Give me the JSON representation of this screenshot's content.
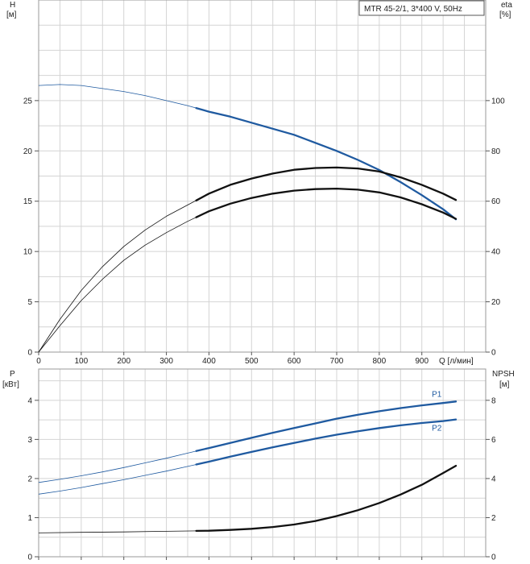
{
  "chart_data": [
    {
      "type": "line",
      "legend_box": "MTR 45-2/1, 3*400 V, 50Hz",
      "xlabel": "Q [л/мин]",
      "x_ticks": [
        0,
        100,
        200,
        300,
        400,
        500,
        600,
        700,
        800,
        900
      ],
      "xlim": [
        0,
        1050
      ],
      "left_axis": {
        "title": "H",
        "unit": "[м]",
        "range": [
          0,
          35
        ],
        "ticks": [
          0,
          5,
          10,
          15,
          20,
          25
        ]
      },
      "right_axis": {
        "title": "eta",
        "unit": "[%]",
        "range": [
          0,
          140
        ],
        "ticks": [
          0,
          20,
          40,
          60,
          80,
          100
        ]
      },
      "grid": true,
      "series": [
        {
          "key": "h",
          "axis": "left",
          "color": "#1f5aa0",
          "operating_range": [
            370,
            980
          ],
          "x": [
            0,
            50,
            100,
            150,
            200,
            250,
            300,
            350,
            400,
            450,
            500,
            550,
            600,
            650,
            700,
            750,
            800,
            850,
            900,
            950,
            980
          ],
          "y": [
            26.5,
            26.6,
            26.5,
            26.2,
            25.9,
            25.5,
            25.0,
            24.5,
            23.9,
            23.4,
            22.8,
            22.2,
            21.6,
            20.8,
            20.0,
            19.1,
            18.1,
            16.9,
            15.6,
            14.2,
            13.2
          ]
        },
        {
          "key": "eta_upper",
          "axis": "right",
          "color": "#111111",
          "operating_range": [
            370,
            980
          ],
          "x": [
            0,
            50,
            100,
            150,
            200,
            250,
            300,
            350,
            400,
            450,
            500,
            550,
            600,
            650,
            700,
            750,
            800,
            850,
            900,
            950,
            980
          ],
          "y": [
            0,
            13,
            24.5,
            34,
            42,
            48.5,
            54,
            58.5,
            63,
            66.5,
            69,
            71,
            72.5,
            73.2,
            73.4,
            73,
            71.8,
            69.5,
            66.5,
            63,
            60.5
          ]
        },
        {
          "key": "eta_lower",
          "axis": "right",
          "color": "#111111",
          "operating_range": [
            370,
            980
          ],
          "x": [
            0,
            50,
            100,
            150,
            200,
            250,
            300,
            350,
            400,
            450,
            500,
            550,
            600,
            650,
            700,
            750,
            800,
            850,
            900,
            950,
            980
          ],
          "y": [
            0,
            10.5,
            20.5,
            29,
            36.5,
            42.5,
            47.5,
            52,
            56,
            59,
            61.3,
            63,
            64.2,
            64.8,
            65,
            64.6,
            63.5,
            61.5,
            58.8,
            55.5,
            53
          ]
        }
      ]
    },
    {
      "type": "line",
      "xlim": [
        0,
        1050
      ],
      "left_axis": {
        "title": "P",
        "unit": "[кВт]",
        "range": [
          0,
          4.8
        ],
        "ticks": [
          0,
          1,
          2,
          3,
          4
        ]
      },
      "right_axis": {
        "title": "NPSH",
        "unit": "[м]",
        "range": [
          0,
          9.6
        ],
        "ticks": [
          0,
          2,
          4,
          6,
          8
        ]
      },
      "grid": true,
      "series": [
        {
          "key": "p1",
          "name": "P1",
          "axis": "left",
          "color": "#1f5aa0",
          "operating_range": [
            370,
            980
          ],
          "x": [
            0,
            50,
            100,
            150,
            200,
            250,
            300,
            350,
            400,
            450,
            500,
            550,
            600,
            650,
            700,
            750,
            800,
            850,
            900,
            950,
            980
          ],
          "y": [
            1.9,
            1.98,
            2.07,
            2.17,
            2.28,
            2.4,
            2.52,
            2.65,
            2.78,
            2.91,
            3.04,
            3.17,
            3.29,
            3.41,
            3.53,
            3.63,
            3.72,
            3.8,
            3.87,
            3.93,
            3.97
          ]
        },
        {
          "key": "p2",
          "name": "P2",
          "axis": "left",
          "color": "#1f5aa0",
          "operating_range": [
            370,
            980
          ],
          "x": [
            0,
            50,
            100,
            150,
            200,
            250,
            300,
            350,
            400,
            450,
            500,
            550,
            600,
            650,
            700,
            750,
            800,
            850,
            900,
            950,
            980
          ],
          "y": [
            1.6,
            1.68,
            1.77,
            1.87,
            1.97,
            2.08,
            2.19,
            2.31,
            2.43,
            2.56,
            2.68,
            2.8,
            2.91,
            3.02,
            3.12,
            3.21,
            3.29,
            3.36,
            3.42,
            3.47,
            3.51
          ]
        },
        {
          "key": "npsh",
          "axis": "right",
          "color": "#111111",
          "operating_range": [
            370,
            980
          ],
          "x": [
            0,
            100,
            200,
            300,
            400,
            450,
            500,
            550,
            600,
            650,
            700,
            750,
            800,
            850,
            900,
            950,
            980
          ],
          "y": [
            1.22,
            1.25,
            1.27,
            1.3,
            1.33,
            1.37,
            1.43,
            1.52,
            1.65,
            1.83,
            2.08,
            2.38,
            2.75,
            3.18,
            3.68,
            4.28,
            4.65
          ]
        }
      ]
    }
  ]
}
